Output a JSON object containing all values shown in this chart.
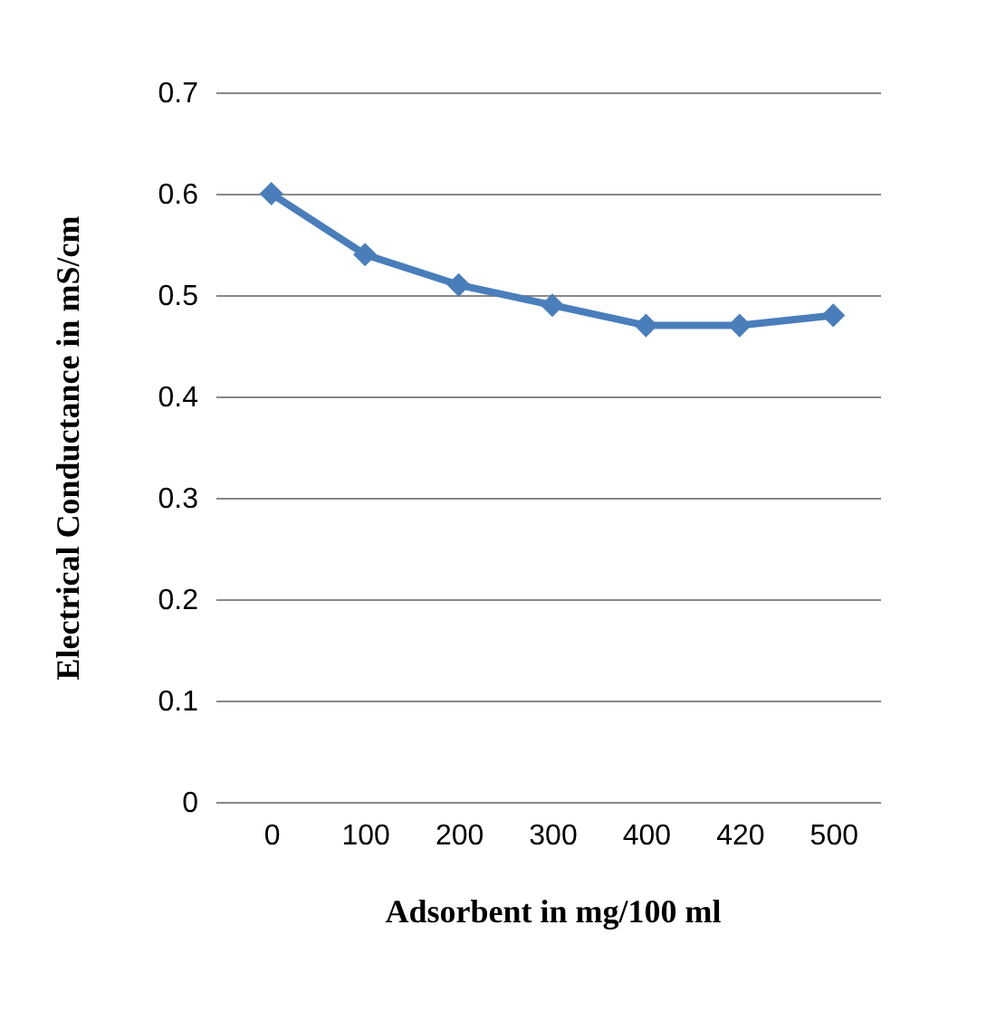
{
  "chart_data": {
    "type": "line",
    "xlabel": "Adsorbent in mg/100 ml",
    "ylabel": "Electrical Conductance in mS/cm",
    "categories": [
      "0",
      "100",
      "200",
      "300",
      "400",
      "420",
      "500"
    ],
    "series": [
      {
        "color": "#4a7ebb",
        "values": [
          0.6,
          0.54,
          0.51,
          0.49,
          0.47,
          0.47,
          0.48
        ]
      }
    ],
    "ylim": [
      0,
      0.7
    ],
    "yticks": [
      0,
      0.1,
      0.2,
      0.3,
      0.4,
      0.5,
      0.6,
      0.7
    ],
    "grid": "y",
    "marker": "diamond",
    "line_style": "solid",
    "legend": false
  }
}
